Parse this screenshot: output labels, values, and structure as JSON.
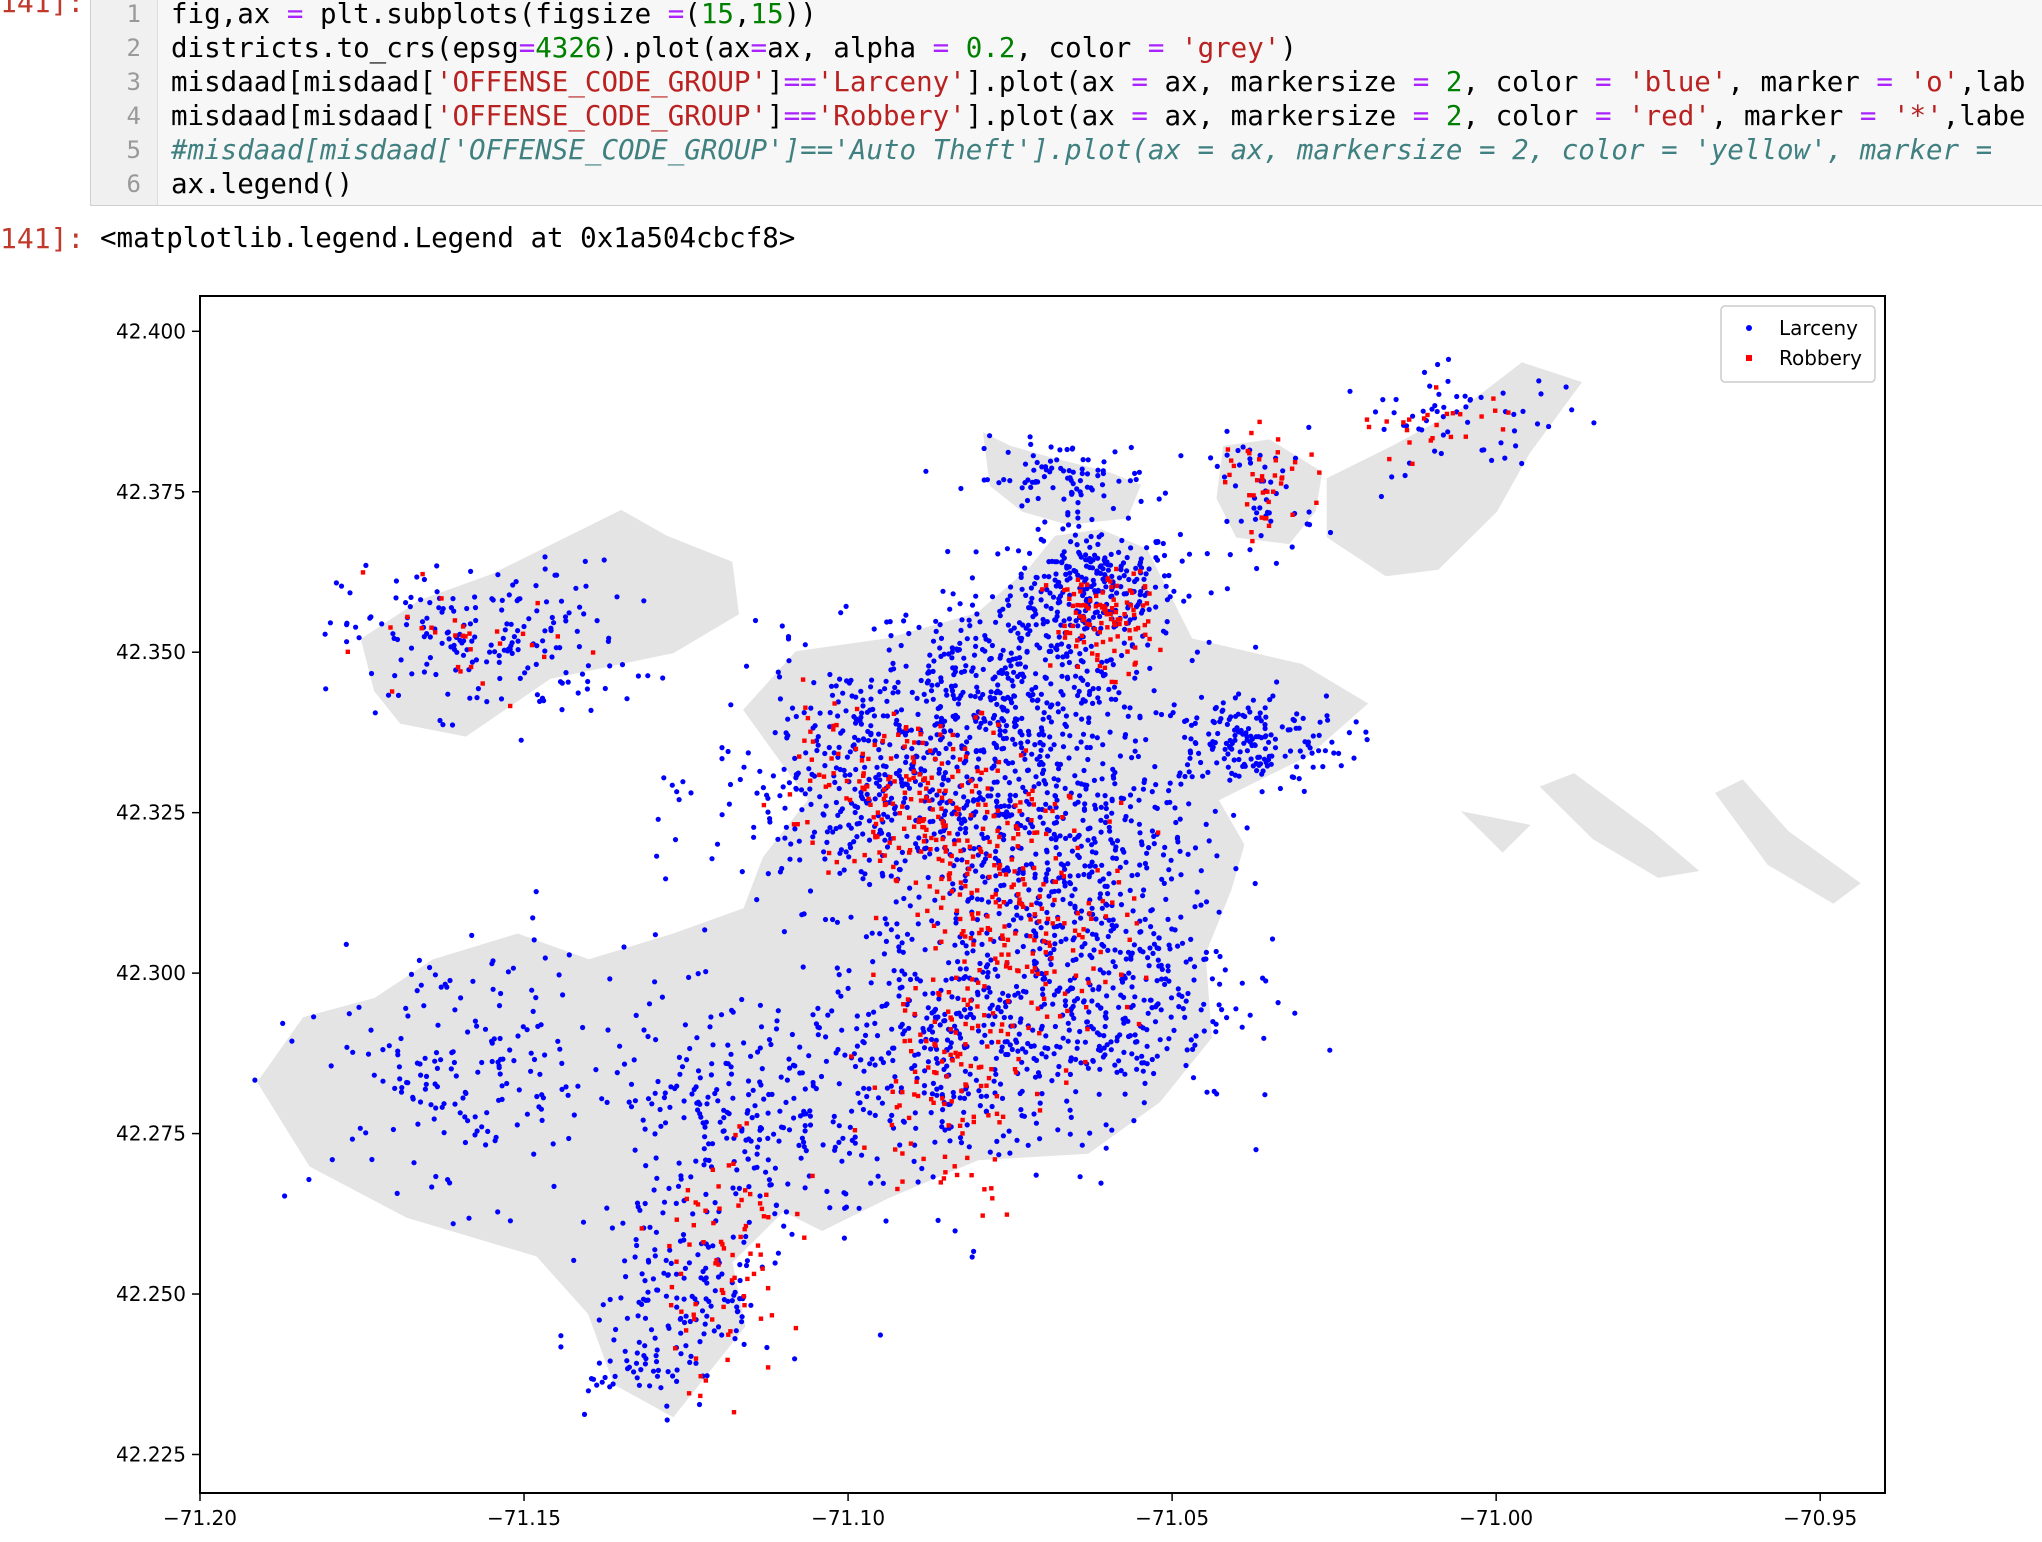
{
  "cell": {
    "in_prompt": "141]:",
    "out_prompt": "141]:",
    "output_text": "<matplotlib.legend.Legend at 0x1a504cbcf8>",
    "lines": [
      {
        "n": "1",
        "tokens": [
          [
            "fig,ax ",
            "#000000"
          ],
          [
            "=",
            "#aa22ff"
          ],
          [
            " plt.subplots(figsize ",
            "#000000"
          ],
          [
            "=",
            "#aa22ff"
          ],
          [
            "(",
            "#000000"
          ],
          [
            "15",
            "#008000"
          ],
          [
            ",",
            "#000000"
          ],
          [
            "15",
            "#008000"
          ],
          [
            "))",
            "#000000"
          ]
        ]
      },
      {
        "n": "2",
        "tokens": [
          [
            "districts.to_crs(epsg",
            "#000000"
          ],
          [
            "=",
            "#aa22ff"
          ],
          [
            "4326",
            "#008000"
          ],
          [
            ").plot(ax",
            "#000000"
          ],
          [
            "=",
            "#aa22ff"
          ],
          [
            "ax, alpha ",
            "#000000"
          ],
          [
            "=",
            "#aa22ff"
          ],
          [
            " ",
            "#000000"
          ],
          [
            "0.2",
            "#008000"
          ],
          [
            ", color ",
            "#000000"
          ],
          [
            "=",
            "#aa22ff"
          ],
          [
            " ",
            "#000000"
          ],
          [
            "'grey'",
            "#ba2121"
          ],
          [
            ")",
            "#000000"
          ]
        ]
      },
      {
        "n": "3",
        "tokens": [
          [
            "misdaad[misdaad[",
            "#000000"
          ],
          [
            "'OFFENSE_CODE_GROUP'",
            "#ba2121"
          ],
          [
            "]",
            "#000000"
          ],
          [
            "==",
            "#aa22ff"
          ],
          [
            "'Larceny'",
            "#ba2121"
          ],
          [
            "].plot(ax ",
            "#000000"
          ],
          [
            "=",
            "#aa22ff"
          ],
          [
            " ax, markersize ",
            "#000000"
          ],
          [
            "=",
            "#aa22ff"
          ],
          [
            " ",
            "#000000"
          ],
          [
            "2",
            "#008000"
          ],
          [
            ", color ",
            "#000000"
          ],
          [
            "=",
            "#aa22ff"
          ],
          [
            " ",
            "#000000"
          ],
          [
            "'blue'",
            "#ba2121"
          ],
          [
            ", marker ",
            "#000000"
          ],
          [
            "=",
            "#aa22ff"
          ],
          [
            " ",
            "#000000"
          ],
          [
            "'o'",
            "#ba2121"
          ],
          [
            ",lab",
            "#000000"
          ]
        ]
      },
      {
        "n": "4",
        "tokens": [
          [
            "misdaad[misdaad[",
            "#000000"
          ],
          [
            "'OFFENSE_CODE_GROUP'",
            "#ba2121"
          ],
          [
            "]",
            "#000000"
          ],
          [
            "==",
            "#aa22ff"
          ],
          [
            "'Robbery'",
            "#ba2121"
          ],
          [
            "].plot(ax ",
            "#000000"
          ],
          [
            "=",
            "#aa22ff"
          ],
          [
            " ax, markersize ",
            "#000000"
          ],
          [
            "=",
            "#aa22ff"
          ],
          [
            " ",
            "#000000"
          ],
          [
            "2",
            "#008000"
          ],
          [
            ", color ",
            "#000000"
          ],
          [
            "=",
            "#aa22ff"
          ],
          [
            " ",
            "#000000"
          ],
          [
            "'red'",
            "#ba2121"
          ],
          [
            ", marker ",
            "#000000"
          ],
          [
            "=",
            "#aa22ff"
          ],
          [
            " ",
            "#000000"
          ],
          [
            "'*'",
            "#ba2121"
          ],
          [
            ",labe",
            "#000000"
          ]
        ]
      },
      {
        "n": "5",
        "tokens": [
          [
            "#misdaad[misdaad['OFFENSE_CODE_GROUP']=='Auto Theft'].plot(ax = ax, markersize = 2, color = 'yellow', marker =",
            "#408080"
          ]
        ]
      },
      {
        "n": "6",
        "tokens": [
          [
            "ax.legend()",
            "#000000"
          ]
        ]
      }
    ]
  },
  "chart_data": {
    "type": "scatter",
    "title": "",
    "xlabel": "",
    "ylabel": "",
    "xlim": [
      -71.2,
      -70.94
    ],
    "ylim": [
      42.219,
      42.4055
    ],
    "xticks": [
      -71.2,
      -71.15,
      -71.1,
      -71.05,
      -71.0,
      -70.95
    ],
    "xtick_labels": [
      "−71.20",
      "−71.15",
      "−71.10",
      "−71.05",
      "−71.00",
      "−70.95"
    ],
    "yticks": [
      42.225,
      42.25,
      42.275,
      42.3,
      42.325,
      42.35,
      42.375,
      42.4
    ],
    "ytick_labels": [
      "42.225",
      "42.250",
      "42.275",
      "42.300",
      "42.325",
      "42.350",
      "42.375",
      "42.400"
    ],
    "legend_position": "top-right",
    "background_layer": {
      "name": "districts",
      "color": "#808080",
      "alpha": 0.2
    },
    "series": [
      {
        "name": "Larceny",
        "color": "#0000ff",
        "marker": "o",
        "clusters": [
          {
            "x": -71.062,
            "y": 42.3605,
            "sx": 0.0065,
            "sy": 0.0045,
            "n": 260
          },
          {
            "x": -71.075,
            "y": 42.346,
            "sx": 0.012,
            "sy": 0.006,
            "n": 320
          },
          {
            "x": -71.039,
            "y": 42.336,
            "sx": 0.008,
            "sy": 0.004,
            "n": 190
          },
          {
            "x": -71.156,
            "y": 42.352,
            "sx": 0.011,
            "sy": 0.006,
            "n": 190
          },
          {
            "x": -71.067,
            "y": 42.377,
            "sx": 0.007,
            "sy": 0.003,
            "n": 90
          },
          {
            "x": -71.036,
            "y": 42.374,
            "sx": 0.004,
            "sy": 0.005,
            "n": 50
          },
          {
            "x": -71.005,
            "y": 42.386,
            "sx": 0.01,
            "sy": 0.004,
            "n": 60
          },
          {
            "x": -71.095,
            "y": 42.33,
            "sx": 0.013,
            "sy": 0.01,
            "n": 460
          },
          {
            "x": -71.07,
            "y": 42.323,
            "sx": 0.012,
            "sy": 0.011,
            "n": 460
          },
          {
            "x": -71.062,
            "y": 42.298,
            "sx": 0.011,
            "sy": 0.01,
            "n": 420
          },
          {
            "x": -71.087,
            "y": 42.287,
            "sx": 0.01,
            "sy": 0.01,
            "n": 330
          },
          {
            "x": -71.118,
            "y": 42.277,
            "sx": 0.01,
            "sy": 0.009,
            "n": 230
          },
          {
            "x": -71.158,
            "y": 42.285,
            "sx": 0.012,
            "sy": 0.01,
            "n": 190
          },
          {
            "x": -71.125,
            "y": 42.25,
            "sx": 0.007,
            "sy": 0.007,
            "n": 140
          },
          {
            "x": -71.132,
            "y": 42.238,
            "sx": 0.004,
            "sy": 0.003,
            "n": 40
          }
        ]
      },
      {
        "name": "Robbery",
        "color": "#ff0000",
        "marker": "*",
        "clusters": [
          {
            "x": -71.061,
            "y": 42.355,
            "sx": 0.004,
            "sy": 0.004,
            "n": 110
          },
          {
            "x": -71.035,
            "y": 42.376,
            "sx": 0.003,
            "sy": 0.004,
            "n": 40
          },
          {
            "x": -71.085,
            "y": 42.325,
            "sx": 0.008,
            "sy": 0.007,
            "n": 160
          },
          {
            "x": -71.072,
            "y": 42.308,
            "sx": 0.008,
            "sy": 0.01,
            "n": 180
          },
          {
            "x": -71.085,
            "y": 42.284,
            "sx": 0.006,
            "sy": 0.01,
            "n": 110
          },
          {
            "x": -71.12,
            "y": 42.255,
            "sx": 0.006,
            "sy": 0.01,
            "n": 80
          },
          {
            "x": -71.16,
            "y": 42.351,
            "sx": 0.01,
            "sy": 0.004,
            "n": 30
          },
          {
            "x": -71.1,
            "y": 42.33,
            "sx": 0.007,
            "sy": 0.006,
            "n": 60
          },
          {
            "x": -71.01,
            "y": 42.385,
            "sx": 0.007,
            "sy": 0.003,
            "n": 25
          }
        ]
      }
    ]
  }
}
